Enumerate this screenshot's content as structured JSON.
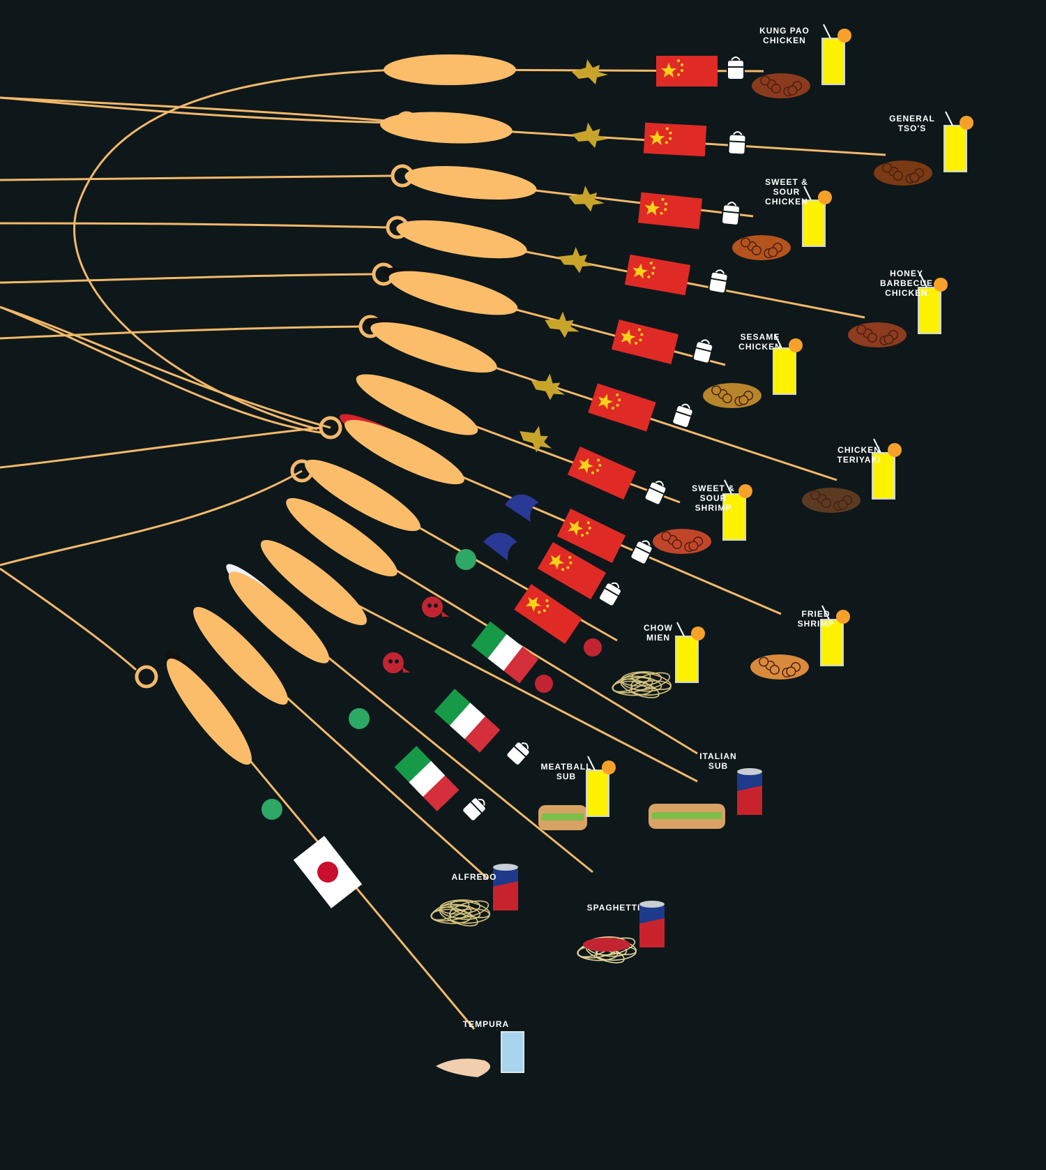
{
  "palette": {
    "background": "#0e181b",
    "line": "#f3b96a",
    "bun": "#fbbd6a",
    "ring": "#f3b96a",
    "soy": "#111111",
    "ketchup": "#d6232d",
    "mayo": "#eef1f5",
    "garnish": "#c8a52a",
    "shrimp_tail": "#2a3896",
    "green_dot": "#2ea865",
    "meat": "#c22531",
    "china_red": "#e02a26",
    "star_yellow": "#f8d219",
    "italy_green": "#179a48",
    "italy_red": "#d42f3a",
    "drink_yellow": "#fef200",
    "orange": "#f7a12b",
    "water": "#a8d4ee"
  },
  "rows": [
    {
      "dish": "KUNG PAO\nCHICKEN",
      "flag": "china",
      "garnish": "scallion",
      "sauce": "none",
      "container": "takeout",
      "drink": "lemonade"
    },
    {
      "dish": "GENERAL\nTSO'S",
      "flag": "china",
      "garnish": "scallion",
      "sauce": "none",
      "container": "takeout",
      "drink": "lemonade"
    },
    {
      "dish": "SWEET &\nSOUR\nCHICKEN",
      "flag": "china",
      "garnish": "scallion",
      "sauce": "none",
      "container": "takeout",
      "drink": "lemonade"
    },
    {
      "dish": "HONEY\nBARBECUE\nCHICKEN",
      "flag": "china",
      "garnish": "scallion",
      "sauce": "none",
      "container": "takeout",
      "drink": "lemonade"
    },
    {
      "dish": "SESAME\nCHICKEN",
      "flag": "china",
      "garnish": "scallion",
      "sauce": "soy",
      "container": "takeout",
      "drink": "lemonade"
    },
    {
      "dish": "CHICKEN\nTERIYAKI",
      "flag": "china",
      "garnish": "scallion",
      "sauce": "soy",
      "container": "takeout",
      "drink": "lemonade"
    },
    {
      "dish": "SWEET &\nSOUR\nSHRIMP",
      "flag": "china",
      "garnish": "scallion",
      "sauce": "none",
      "container": "takeout",
      "drink": "lemonade"
    },
    {
      "dish": "FRIED\nSHRIMP",
      "flag": "china",
      "garnish": "shrimp",
      "sauce": "ketchup",
      "container": "takeout",
      "drink": "lemonade"
    },
    {
      "dish": "CHOW\nMIEN",
      "flag": "china",
      "garnish": "shrimp",
      "sauce": "none",
      "container": "takeout",
      "drink": "lemonade"
    },
    {
      "dish": "ITALIAN\nSUB",
      "flag": "china",
      "garnish": "vegetable",
      "sauce": "none",
      "container": "meatball",
      "drink": "can"
    },
    {
      "dish": "MEATBALL\nSUB",
      "flag": "italy",
      "garnish": "meat",
      "sauce": "none",
      "container": "meatball",
      "drink": "lemonade"
    },
    {
      "dish": "SPAGHETTI",
      "flag": "italy",
      "garnish": "meat",
      "sauce": "mayo",
      "container": "takeout",
      "drink": "can"
    },
    {
      "dish": "ALFREDO",
      "flag": "italy",
      "garnish": "vegetable",
      "sauce": "none",
      "container": "takeout",
      "drink": "can"
    },
    {
      "dish": "TEMPURA",
      "flag": "japan",
      "garnish": "vegetable",
      "sauce": "soy",
      "container": "none",
      "drink": "water"
    }
  ]
}
